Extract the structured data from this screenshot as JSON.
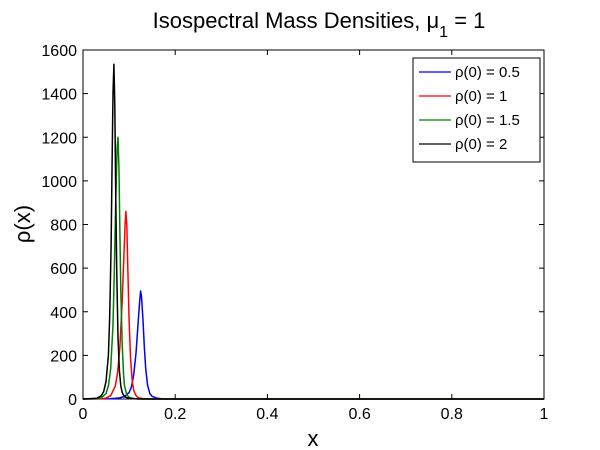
{
  "chart_data": {
    "type": "line",
    "title": {
      "prefix": "Isospectral Mass Densities, ",
      "symbol": "μ",
      "subscript": "1",
      "suffix": " = 1"
    },
    "xlabel": "x",
    "ylabel": "ρ(x)",
    "xlim": [
      0,
      1
    ],
    "ylim": [
      0,
      1600
    ],
    "xticks": [
      0,
      0.2,
      0.4,
      0.6,
      0.8,
      1
    ],
    "xtick_labels": [
      "0",
      "0.2",
      "0.4",
      "0.6",
      "0.8",
      "1"
    ],
    "yticks": [
      0,
      200,
      400,
      600,
      800,
      1000,
      1200,
      1400,
      1600
    ],
    "ytick_labels": [
      "0",
      "200",
      "400",
      "600",
      "800",
      "1000",
      "1200",
      "1400",
      "1600"
    ],
    "grid": false,
    "legend_position": "top-right",
    "series": [
      {
        "name": "ρ(0) = 0.5",
        "color": "#0000ff",
        "x": [
          0,
          0.06,
          0.08,
          0.09,
          0.1,
          0.105,
          0.11,
          0.115,
          0.12,
          0.123,
          0.125,
          0.127,
          0.13,
          0.133,
          0.136,
          0.14,
          0.145,
          0.15,
          0.16,
          0.17,
          0.2,
          0.3,
          1.0
        ],
        "y": [
          0,
          1,
          5,
          12,
          30,
          55,
          110,
          210,
          360,
          450,
          495,
          470,
          370,
          240,
          140,
          65,
          25,
          12,
          4,
          1,
          0,
          0,
          0
        ]
      },
      {
        "name": "ρ(0) = 1",
        "color": "#ff0000",
        "x": [
          0,
          0.04,
          0.05,
          0.06,
          0.07,
          0.075,
          0.08,
          0.085,
          0.088,
          0.091,
          0.093,
          0.095,
          0.097,
          0.1,
          0.103,
          0.107,
          0.11,
          0.115,
          0.12,
          0.13,
          0.15,
          0.2,
          1.0
        ],
        "y": [
          0,
          1,
          4,
          15,
          60,
          120,
          240,
          450,
          620,
          790,
          860,
          800,
          620,
          360,
          190,
          80,
          40,
          15,
          6,
          2,
          0,
          0,
          0
        ]
      },
      {
        "name": "ρ(0) = 1.5",
        "color": "#008000",
        "x": [
          0,
          0.03,
          0.04,
          0.05,
          0.055,
          0.06,
          0.065,
          0.068,
          0.071,
          0.074,
          0.076,
          0.078,
          0.08,
          0.082,
          0.085,
          0.088,
          0.09,
          0.095,
          0.1,
          0.11,
          0.13,
          0.2,
          1.0
        ],
        "y": [
          0,
          2,
          6,
          25,
          60,
          140,
          340,
          580,
          900,
          1150,
          1200,
          1050,
          760,
          500,
          250,
          110,
          60,
          20,
          8,
          2,
          0,
          0,
          0
        ]
      },
      {
        "name": "ρ(0) = 2",
        "color": "#000000",
        "x": [
          0,
          0.03,
          0.04,
          0.045,
          0.05,
          0.055,
          0.058,
          0.061,
          0.063,
          0.065,
          0.067,
          0.069,
          0.071,
          0.073,
          0.076,
          0.079,
          0.082,
          0.085,
          0.09,
          0.1,
          0.12,
          0.2,
          1.0
        ],
        "y": [
          0,
          3,
          15,
          35,
          80,
          200,
          380,
          700,
          1050,
          1400,
          1535,
          1350,
          950,
          600,
          280,
          130,
          60,
          30,
          10,
          3,
          0,
          0,
          0
        ]
      }
    ]
  }
}
